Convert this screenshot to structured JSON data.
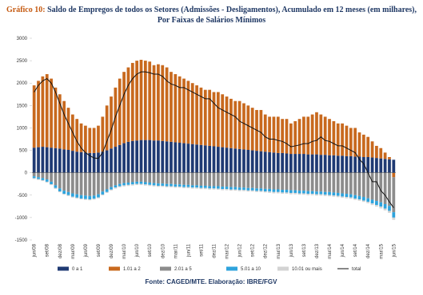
{
  "chart_data": {
    "type": "bar",
    "stacked": true,
    "title_label": "Gráfico 10:",
    "title": "Saldo de Empregos de todos os Setores (Admissões - Desligamentos), Acumulado em 12 meses (em milhares), Por Faixas de Salários Mínimos",
    "source": "Fonte: CAGED/MTE. Elaboração: IBRE/FGV",
    "categories": [
      "jun/08",
      null,
      null,
      "set/08",
      null,
      null,
      "dez/08",
      null,
      null,
      "mar/09",
      null,
      null,
      "jun/09",
      null,
      null,
      "set/09",
      null,
      null,
      "dez/09",
      null,
      null,
      "mar/10",
      null,
      null,
      "jun/10",
      null,
      null,
      "set/10",
      null,
      null,
      "dez/10",
      null,
      null,
      "mar/11",
      null,
      null,
      "jun/11",
      null,
      null,
      "set/11",
      null,
      null,
      "dez/11",
      null,
      null,
      "mar/12",
      null,
      null,
      "jun/12",
      null,
      null,
      "set/12",
      null,
      null,
      "dez/12",
      null,
      null,
      "mar/13",
      null,
      null,
      "jun/13",
      null,
      null,
      "set/13",
      null,
      null,
      "dez/13",
      null,
      null,
      "mar/14",
      null,
      null,
      "jun/14",
      null,
      null,
      "set/14",
      null,
      null,
      "dez/14",
      null,
      null,
      "mar/15",
      null,
      null,
      "jun/15"
    ],
    "ylim": [
      -1500,
      3000
    ],
    "yticks": [
      -1500,
      -1000,
      -500,
      0,
      500,
      1000,
      1500,
      2000,
      2500,
      3000
    ],
    "grid": false,
    "series": [
      {
        "name": "0 a 1",
        "color": "#1f3a73",
        "values": [
          560,
          570,
          580,
          570,
          560,
          550,
          540,
          520,
          510,
          490,
          470,
          460,
          450,
          440,
          440,
          450,
          470,
          500,
          540,
          580,
          620,
          660,
          690,
          710,
          720,
          730,
          730,
          730,
          720,
          720,
          710,
          700,
          690,
          680,
          670,
          660,
          650,
          640,
          630,
          620,
          610,
          600,
          590,
          580,
          570,
          560,
          550,
          540,
          530,
          520,
          510,
          500,
          490,
          480,
          470,
          460,
          450,
          440,
          440,
          430,
          420,
          420,
          420,
          420,
          410,
          410,
          410,
          400,
          400,
          390,
          390,
          380,
          380,
          370,
          370,
          360,
          360,
          350,
          350,
          340,
          330,
          320,
          310,
          300,
          290
        ]
      },
      {
        "name": "1.01 a 2",
        "color": "#c8691e",
        "values": [
          1390,
          1480,
          1570,
          1630,
          1540,
          1350,
          1210,
          1080,
          940,
          810,
          730,
          640,
          600,
          560,
          560,
          600,
          780,
          1000,
          1160,
          1320,
          1480,
          1590,
          1660,
          1740,
          1780,
          1790,
          1770,
          1750,
          1680,
          1700,
          1690,
          1650,
          1560,
          1520,
          1480,
          1440,
          1400,
          1360,
          1320,
          1280,
          1240,
          1250,
          1210,
          1220,
          1180,
          1140,
          1100,
          1060,
          1070,
          1030,
          990,
          950,
          910,
          920,
          830,
          790,
          800,
          810,
          760,
          770,
          680,
          730,
          780,
          830,
          840,
          890,
          940,
          900,
          850,
          810,
          760,
          720,
          720,
          680,
          630,
          640,
          540,
          500,
          450,
          360,
          270,
          230,
          140,
          50,
          -100
        ]
      },
      {
        "name": "2.01 a 5",
        "color": "#8c8c8c",
        "values": [
          -80,
          -100,
          -120,
          -150,
          -200,
          -280,
          -350,
          -400,
          -430,
          -460,
          -480,
          -500,
          -510,
          -520,
          -510,
          -480,
          -420,
          -370,
          -320,
          -280,
          -250,
          -230,
          -220,
          -210,
          -200,
          -200,
          -210,
          -220,
          -230,
          -240,
          -240,
          -250,
          -250,
          -260,
          -260,
          -270,
          -270,
          -280,
          -280,
          -290,
          -290,
          -300,
          -300,
          -300,
          -310,
          -310,
          -320,
          -320,
          -330,
          -330,
          -340,
          -340,
          -350,
          -350,
          -360,
          -360,
          -370,
          -370,
          -380,
          -380,
          -390,
          -390,
          -400,
          -400,
          -410,
          -410,
          -420,
          -420,
          -430,
          -430,
          -440,
          -450,
          -460,
          -470,
          -480,
          -500,
          -520,
          -540,
          -570,
          -600,
          -630,
          -660,
          -700,
          -740,
          -780
        ]
      },
      {
        "name": "5.01 a 10",
        "color": "#2ea3dc",
        "values": [
          -40,
          -40,
          -45,
          -50,
          -55,
          -60,
          -65,
          -70,
          -70,
          -75,
          -75,
          -75,
          -75,
          -75,
          -70,
          -70,
          -65,
          -60,
          -55,
          -50,
          -50,
          -50,
          -50,
          -50,
          -50,
          -50,
          -50,
          -50,
          -50,
          -50,
          -50,
          -50,
          -50,
          -50,
          -50,
          -50,
          -50,
          -50,
          -50,
          -50,
          -50,
          -50,
          -50,
          -55,
          -55,
          -55,
          -55,
          -55,
          -55,
          -55,
          -55,
          -55,
          -55,
          -55,
          -55,
          -60,
          -60,
          -60,
          -60,
          -60,
          -60,
          -60,
          -60,
          -60,
          -60,
          -60,
          -60,
          -60,
          -60,
          -65,
          -65,
          -65,
          -70,
          -70,
          -70,
          -75,
          -75,
          -80,
          -80,
          -85,
          -90,
          -95,
          -100,
          -110,
          -120
        ]
      },
      {
        "name": "10.01 ou mais",
        "color": "#d3d3d3",
        "values": [
          -20,
          -20,
          -20,
          -20,
          -20,
          -20,
          -20,
          -20,
          -20,
          -20,
          -20,
          -20,
          -20,
          -20,
          -20,
          -20,
          -20,
          -20,
          -20,
          -25,
          -25,
          -25,
          -25,
          -25,
          -25,
          -25,
          -25,
          -25,
          -25,
          -25,
          -25,
          -25,
          -25,
          -25,
          -25,
          -25,
          -25,
          -25,
          -25,
          -25,
          -25,
          -25,
          -25,
          -25,
          -25,
          -25,
          -25,
          -25,
          -25,
          -25,
          -25,
          -25,
          -25,
          -25,
          -25,
          -30,
          -30,
          -30,
          -30,
          -30,
          -30,
          -30,
          -30,
          -30,
          -30,
          -30,
          -30,
          -30,
          -30,
          -30,
          -30,
          -30,
          -30,
          -30,
          -30,
          -30,
          -30,
          -30,
          -30,
          -35,
          -35,
          -40,
          -40,
          -45,
          -50
        ]
      },
      {
        "name": "total",
        "type": "line",
        "color": "#111111",
        "values": [
          1800,
          1950,
          2050,
          2100,
          2000,
          1800,
          1550,
          1300,
          1100,
          900,
          700,
          550,
          450,
          380,
          330,
          320,
          450,
          700,
          950,
          1250,
          1500,
          1750,
          1950,
          2100,
          2200,
          2250,
          2250,
          2230,
          2200,
          2200,
          2150,
          2050,
          1980,
          1950,
          1900,
          1900,
          1850,
          1800,
          1750,
          1700,
          1650,
          1650,
          1550,
          1450,
          1400,
          1350,
          1300,
          1250,
          1150,
          1100,
          1050,
          1000,
          950,
          900,
          800,
          750,
          750,
          720,
          700,
          650,
          580,
          600,
          620,
          650,
          650,
          700,
          720,
          800,
          720,
          700,
          650,
          600,
          600,
          550,
          500,
          450,
          300,
          200,
          0,
          -200,
          -200,
          -400,
          -500,
          -650,
          -780
        ]
      }
    ]
  }
}
